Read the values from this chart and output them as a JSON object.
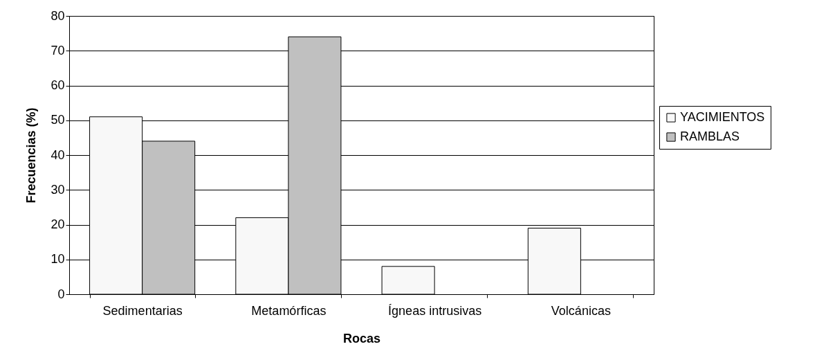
{
  "chart_data": {
    "type": "bar",
    "xlabel": "Rocas",
    "ylabel": "Frecuencias (%)",
    "categories": [
      "Sedimentarias",
      "Metamórficas",
      "Ígneas intrusivas",
      "Volcánicas"
    ],
    "series": [
      {
        "name": "YACIMIENTOS",
        "color": "#f8f8f8",
        "values": [
          51,
          22,
          8,
          19
        ]
      },
      {
        "name": "RAMBLAS",
        "color": "#c0c0c0",
        "values": [
          44,
          74,
          null,
          null
        ]
      }
    ],
    "ylim": [
      0,
      80
    ],
    "yticks": [
      0,
      10,
      20,
      30,
      40,
      50,
      60,
      70,
      80
    ],
    "grid": "y",
    "legend": "right"
  }
}
